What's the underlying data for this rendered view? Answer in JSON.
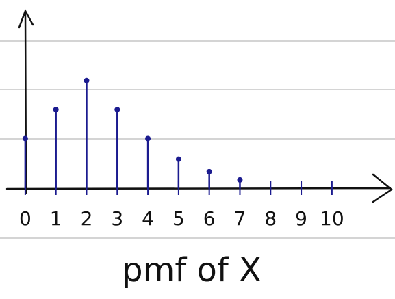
{
  "chart_data": {
    "type": "stem",
    "title": "pmf of X",
    "x": [
      0,
      1,
      2,
      3,
      4,
      5,
      6,
      7,
      8,
      9,
      10
    ],
    "values": [
      0.12,
      0.19,
      0.26,
      0.19,
      0.12,
      0.07,
      0.04,
      0.02,
      0,
      0,
      0
    ],
    "color": "#1b1b8f",
    "xlim": [
      -0.6,
      11.9
    ],
    "xticks": [
      0,
      1,
      2,
      3,
      4,
      5,
      6,
      7,
      8,
      9,
      10
    ],
    "ylim": [
      0,
      0.43
    ]
  }
}
